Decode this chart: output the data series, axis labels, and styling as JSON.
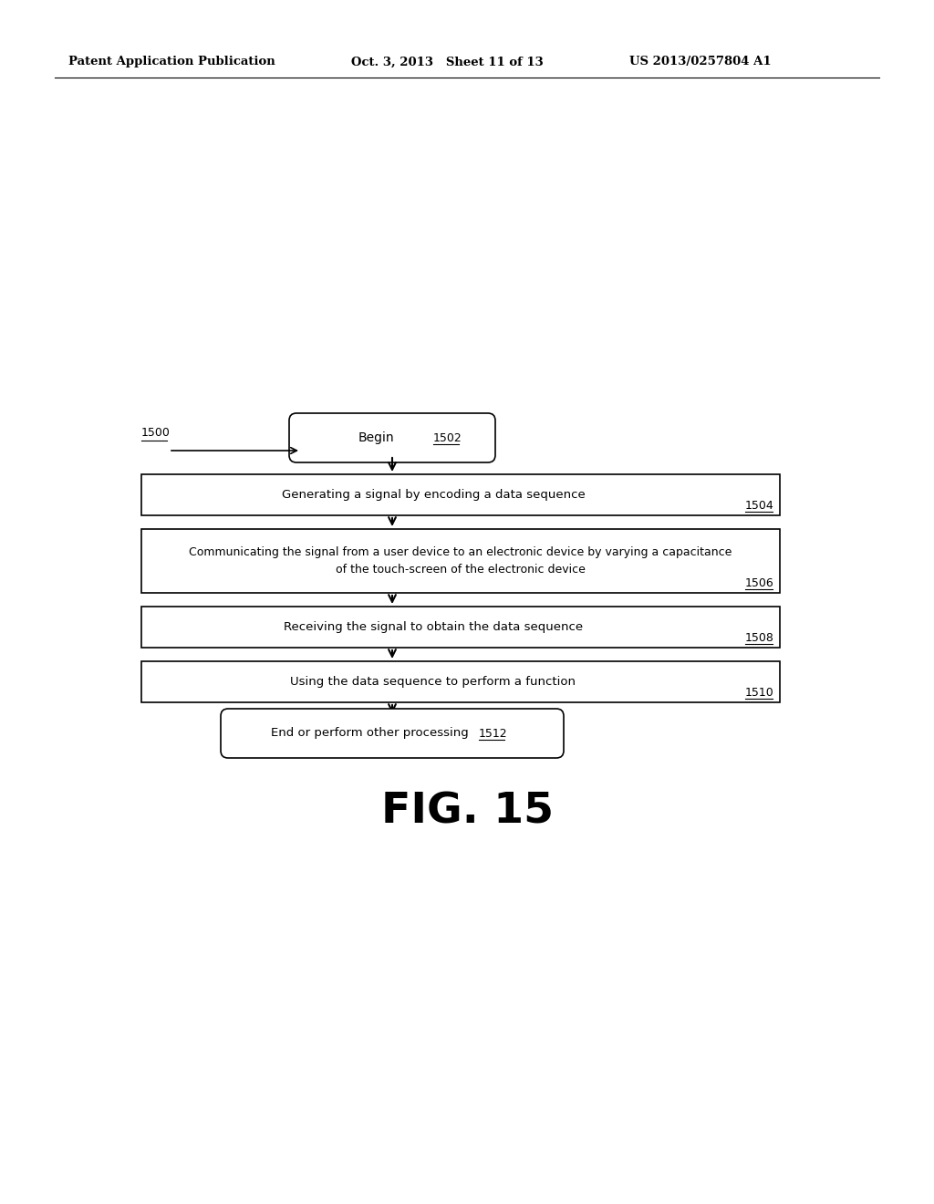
{
  "bg_color": "#ffffff",
  "header_left": "Patent Application Publication",
  "header_mid": "Oct. 3, 2013   Sheet 11 of 13",
  "header_right": "US 2013/0257804 A1",
  "fig_label": "FIG. 15",
  "diagram_label": "1500",
  "begin_label": "Begin",
  "begin_ref": "1502",
  "step1_label": "Generating a signal by encoding a data sequence",
  "step1_ref": "1504",
  "step2_line1": "Communicating the signal from a user device to an electronic device by varying a capacitance",
  "step2_line2": "of the touch-screen of the electronic device",
  "step2_ref": "1506",
  "step3_label": "Receiving the signal to obtain the data sequence",
  "step3_ref": "1508",
  "step4_label": "Using the data sequence to perform a function",
  "step4_ref": "1510",
  "end_label": "End or perform other processing",
  "end_ref": "1512"
}
